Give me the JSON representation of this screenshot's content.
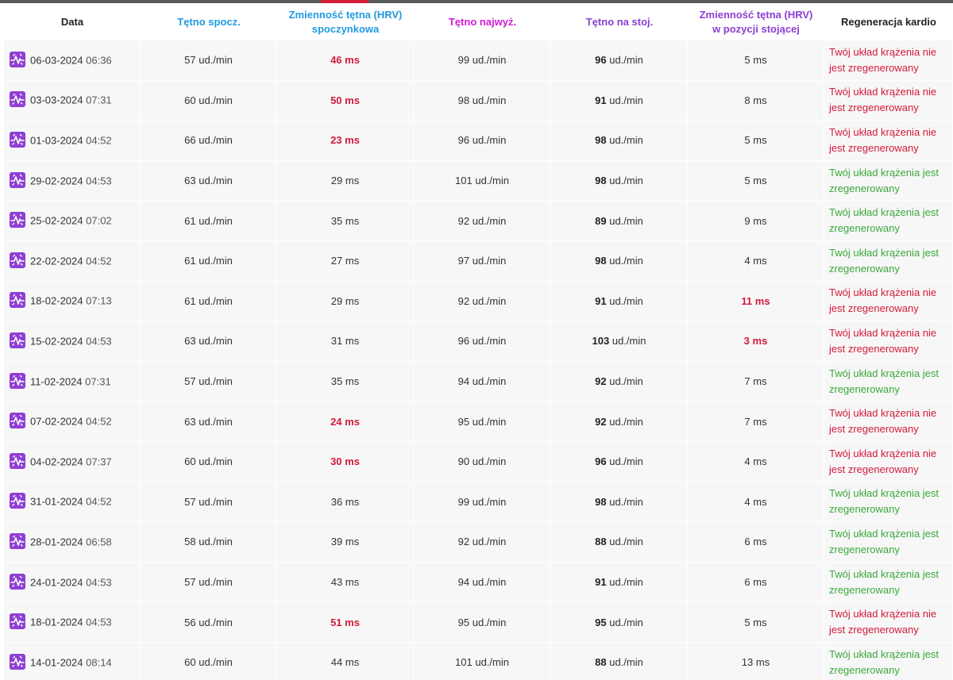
{
  "colors": {
    "resting_header": "#1e9be0",
    "max_header": "#d21ad8",
    "standing_header": "#8b3fd1",
    "alert": "#d21a3a",
    "good": "#3aa83a",
    "icon_bg": "#8e3fd3"
  },
  "headers": {
    "date": "Data",
    "resting_hr": "Tętno spocz.",
    "hrv_rest_line1": "Zmienność tętna (HRV)",
    "hrv_rest_line2": "spoczynkowa",
    "max_hr": "Tętno najwyż.",
    "standing_hr": "Tętno na stoj.",
    "hrv_stand_line1": "Zmienność tętna (HRV)",
    "hrv_stand_line2": "w pozycji stojącej",
    "recovery": "Regeneracja kardio"
  },
  "units": {
    "bpm": "ud./min"
  },
  "row_icon": "heart-rate-pulse-icon",
  "rows": [
    {
      "date": "06-03-2024",
      "time": "06:36",
      "resting": "57 ud./min",
      "hrv": "46 ms",
      "hrv_alert": true,
      "max": "99 ud./min",
      "standing": "96",
      "hrv_stand": "5 ms",
      "hrv_stand_alert": false,
      "recovery": "Twój układ krążenia nie jest zregenerowany",
      "recovered": false
    },
    {
      "date": "03-03-2024",
      "time": "07:31",
      "resting": "60 ud./min",
      "hrv": "50 ms",
      "hrv_alert": true,
      "max": "98 ud./min",
      "standing": "91",
      "hrv_stand": "8 ms",
      "hrv_stand_alert": false,
      "recovery": "Twój układ krążenia nie jest zregenerowany",
      "recovered": false
    },
    {
      "date": "01-03-2024",
      "time": "04:52",
      "resting": "66 ud./min",
      "hrv": "23 ms",
      "hrv_alert": true,
      "max": "96 ud./min",
      "standing": "98",
      "hrv_stand": "5 ms",
      "hrv_stand_alert": false,
      "recovery": "Twój układ krążenia nie jest zregenerowany",
      "recovered": false
    },
    {
      "date": "29-02-2024",
      "time": "04:53",
      "resting": "63 ud./min",
      "hrv": "29 ms",
      "hrv_alert": false,
      "max": "101 ud./min",
      "standing": "98",
      "hrv_stand": "5 ms",
      "hrv_stand_alert": false,
      "recovery": "Twój układ krążenia jest zregenerowany",
      "recovered": true
    },
    {
      "date": "25-02-2024",
      "time": "07:02",
      "resting": "61 ud./min",
      "hrv": "35 ms",
      "hrv_alert": false,
      "max": "92 ud./min",
      "standing": "89",
      "hrv_stand": "9 ms",
      "hrv_stand_alert": false,
      "recovery": "Twój układ krążenia jest zregenerowany",
      "recovered": true
    },
    {
      "date": "22-02-2024",
      "time": "04:52",
      "resting": "61 ud./min",
      "hrv": "27 ms",
      "hrv_alert": false,
      "max": "97 ud./min",
      "standing": "98",
      "hrv_stand": "4 ms",
      "hrv_stand_alert": false,
      "recovery": "Twój układ krążenia jest zregenerowany",
      "recovered": true
    },
    {
      "date": "18-02-2024",
      "time": "07:13",
      "resting": "61 ud./min",
      "hrv": "29 ms",
      "hrv_alert": false,
      "max": "92 ud./min",
      "standing": "91",
      "hrv_stand": "11 ms",
      "hrv_stand_alert": true,
      "recovery": "Twój układ krążenia nie jest zregenerowany",
      "recovered": false
    },
    {
      "date": "15-02-2024",
      "time": "04:53",
      "resting": "63 ud./min",
      "hrv": "31 ms",
      "hrv_alert": false,
      "max": "96 ud./min",
      "standing": "103",
      "hrv_stand": "3 ms",
      "hrv_stand_alert": true,
      "recovery": "Twój układ krążenia nie jest zregenerowany",
      "recovered": false
    },
    {
      "date": "11-02-2024",
      "time": "07:31",
      "resting": "57 ud./min",
      "hrv": "35 ms",
      "hrv_alert": false,
      "max": "94 ud./min",
      "standing": "92",
      "hrv_stand": "7 ms",
      "hrv_stand_alert": false,
      "recovery": "Twój układ krążenia jest zregenerowany",
      "recovered": true
    },
    {
      "date": "07-02-2024",
      "time": "04:52",
      "resting": "63 ud./min",
      "hrv": "24 ms",
      "hrv_alert": true,
      "max": "95 ud./min",
      "standing": "92",
      "hrv_stand": "7 ms",
      "hrv_stand_alert": false,
      "recovery": "Twój układ krążenia nie jest zregenerowany",
      "recovered": false
    },
    {
      "date": "04-02-2024",
      "time": "07:37",
      "resting": "60 ud./min",
      "hrv": "30 ms",
      "hrv_alert": true,
      "max": "90 ud./min",
      "standing": "96",
      "hrv_stand": "4 ms",
      "hrv_stand_alert": false,
      "recovery": "Twój układ krążenia nie jest zregenerowany",
      "recovered": false
    },
    {
      "date": "31-01-2024",
      "time": "04:52",
      "resting": "57 ud./min",
      "hrv": "36 ms",
      "hrv_alert": false,
      "max": "99 ud./min",
      "standing": "98",
      "hrv_stand": "4 ms",
      "hrv_stand_alert": false,
      "recovery": "Twój układ krążenia jest zregenerowany",
      "recovered": true
    },
    {
      "date": "28-01-2024",
      "time": "06:58",
      "resting": "58 ud./min",
      "hrv": "39 ms",
      "hrv_alert": false,
      "max": "92 ud./min",
      "standing": "88",
      "hrv_stand": "6 ms",
      "hrv_stand_alert": false,
      "recovery": "Twój układ krążenia jest zregenerowany",
      "recovered": true
    },
    {
      "date": "24-01-2024",
      "time": "04:53",
      "resting": "57 ud./min",
      "hrv": "43 ms",
      "hrv_alert": false,
      "max": "94 ud./min",
      "standing": "91",
      "hrv_stand": "6 ms",
      "hrv_stand_alert": false,
      "recovery": "Twój układ krążenia jest zregenerowany",
      "recovered": true
    },
    {
      "date": "18-01-2024",
      "time": "04:53",
      "resting": "56 ud./min",
      "hrv": "51 ms",
      "hrv_alert": true,
      "max": "95 ud./min",
      "standing": "95",
      "hrv_stand": "5 ms",
      "hrv_stand_alert": false,
      "recovery": "Twój układ krążenia nie jest zregenerowany",
      "recovered": false
    },
    {
      "date": "14-01-2024",
      "time": "08:14",
      "resting": "60 ud./min",
      "hrv": "44 ms",
      "hrv_alert": false,
      "max": "101 ud./min",
      "standing": "88",
      "hrv_stand": "13 ms",
      "hrv_stand_alert": false,
      "recovery": "Twój układ krążenia jest zregenerowany",
      "recovered": true
    }
  ]
}
